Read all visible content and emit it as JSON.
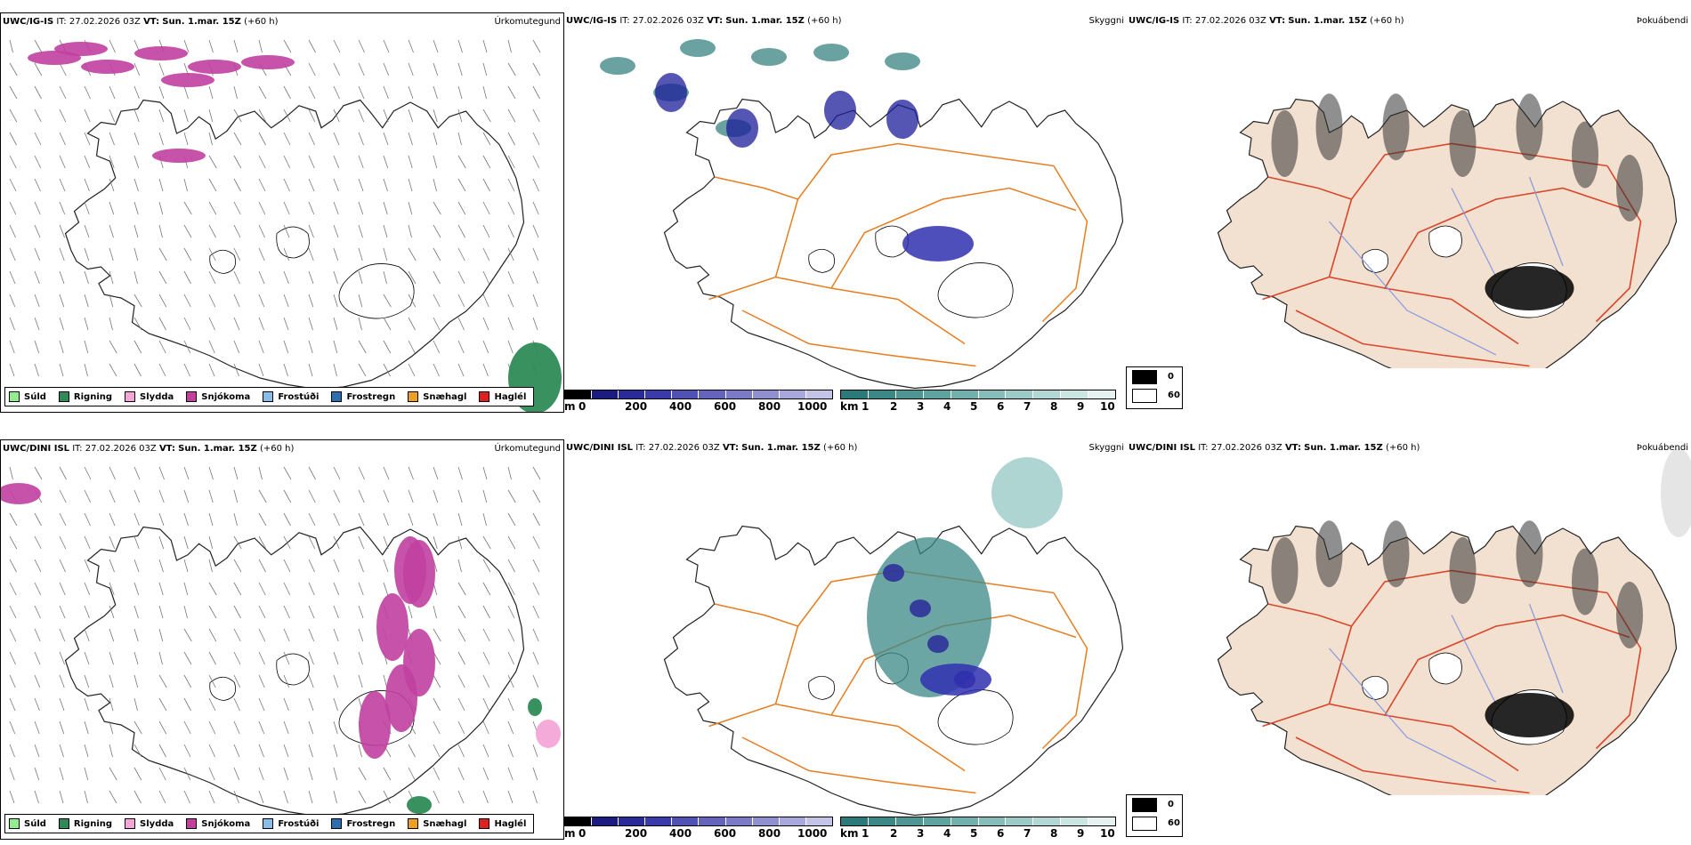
{
  "rows": [
    {
      "model": "UWC/IG-IS",
      "it_label": "IT:",
      "it_value": "27.02.2026 03Z",
      "vt_label": "VT:",
      "vt_value": "Sun. 1.mar. 15Z",
      "lead": "(+60 h)"
    },
    {
      "model": "UWC/DINI ISL",
      "it_label": "IT:",
      "it_value": "27.02.2026 03Z",
      "vt_label": "VT:",
      "vt_value": "Sun. 1.mar. 15Z",
      "lead": "(+60 h)"
    }
  ],
  "fields": {
    "precip": "Úrkomutegund",
    "cloud": "Skyggni",
    "fog": "Þokuábendi"
  },
  "precip_legend": [
    {
      "label": "Súld",
      "color": "#90ee90"
    },
    {
      "label": "Rigning",
      "color": "#2e8b57"
    },
    {
      "label": "Slydda",
      "color": "#f4a6d7"
    },
    {
      "label": "Snjókoma",
      "color": "#c040a0"
    },
    {
      "label": "Frostúði",
      "color": "#87bde8"
    },
    {
      "label": "Frostregn",
      "color": "#2a6fb0"
    },
    {
      "label": "Snæhagl",
      "color": "#f0a020"
    },
    {
      "label": "Haglél",
      "color": "#e02020"
    }
  ],
  "ceiling_scale": {
    "unit": "m",
    "ticks": [
      "0",
      "200",
      "400",
      "600",
      "800",
      "1000"
    ],
    "colors": [
      "#000000",
      "#1c1c80",
      "#2a2a9a",
      "#3a3aaa",
      "#5050b5",
      "#6464be",
      "#7a7ac8",
      "#9090d0",
      "#a8a8dc",
      "#c4c4e8"
    ]
  },
  "visibility_scale": {
    "unit": "km",
    "ticks": [
      "1",
      "2",
      "3",
      "4",
      "5",
      "6",
      "7",
      "8",
      "9",
      "10"
    ],
    "colors": [
      "#2a7a78",
      "#3b8886",
      "#4d9694",
      "#5fa3a1",
      "#72b0ae",
      "#86bdbb",
      "#9bcac8",
      "#b2d7d5",
      "#cbe5e3",
      "#e6f2f1"
    ]
  },
  "fog_legend": [
    {
      "value": "0",
      "color": "#000000"
    },
    {
      "value": "60",
      "color": "#ffffff"
    }
  ]
}
